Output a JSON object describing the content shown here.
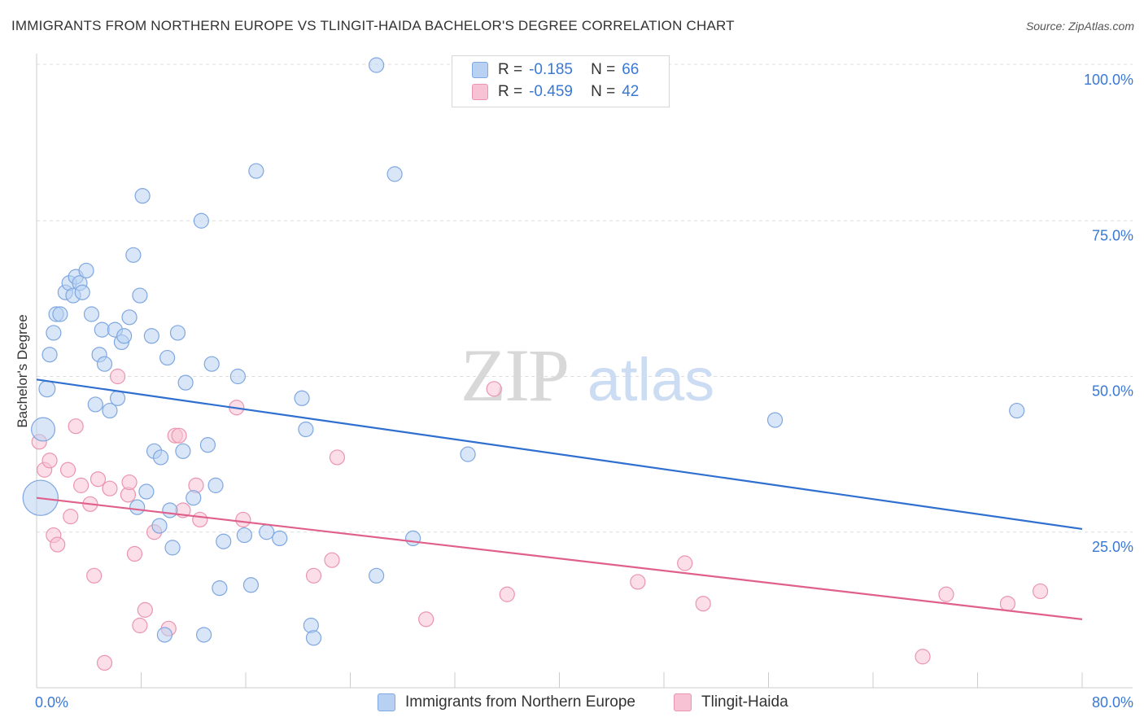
{
  "header": {
    "title": "IMMIGRANTS FROM NORTHERN EUROPE VS TLINGIT-HAIDA BACHELOR'S DEGREE CORRELATION CHART",
    "source": "Source: ZipAtlas.com"
  },
  "watermark": {
    "zip": "ZIP",
    "atlas": "atlas"
  },
  "legend": {
    "rows": [
      {
        "r_label": "R =",
        "r_value": "-0.185",
        "n_label": "N =",
        "n_value": "66"
      },
      {
        "r_label": "R =",
        "r_value": "-0.459",
        "n_label": "N =",
        "n_value": "42"
      }
    ]
  },
  "bottom_legend": {
    "items": [
      "Immigrants from Northern Europe",
      "Tlingit-Haida"
    ]
  },
  "colors": {
    "blue_fill": "#b8d1f3",
    "blue_stroke": "#7fa7e0",
    "blue_line": "#2f6fd0",
    "pink_fill": "#f7c3d4",
    "pink_stroke": "#eb94b1",
    "pink_line": "#e0608c",
    "axis_label": "#3a78d6",
    "grid": "#dddddd"
  },
  "chart_data": {
    "type": "scatter",
    "title": "IMMIGRANTS FROM NORTHERN EUROPE VS TLINGIT-HAIDA BACHELOR'S DEGREE CORRELATION CHART",
    "xlabel": "",
    "ylabel": "Bachelor's Degree",
    "xlim": [
      0,
      80
    ],
    "ylim": [
      0,
      100
    ],
    "x_tick_labels": [
      "0.0%",
      "80.0%"
    ],
    "y_tick_labels": [
      "25.0%",
      "50.0%",
      "75.0%",
      "100.0%"
    ],
    "y_ticks": [
      25,
      50,
      75,
      100
    ],
    "grid": true,
    "series": [
      {
        "name": "Immigrants from Northern Europe",
        "color": "blue",
        "r": -0.185,
        "n": 66,
        "trend": {
          "x": [
            0,
            80
          ],
          "y": [
            49.5,
            25.5
          ]
        },
        "points": [
          [
            0.3,
            30.5,
            2.4
          ],
          [
            0.5,
            41.5,
            1.6
          ],
          [
            0.8,
            48,
            1.1
          ],
          [
            1.0,
            53.5,
            1
          ],
          [
            1.3,
            57,
            1
          ],
          [
            1.5,
            60,
            1
          ],
          [
            1.8,
            60,
            1
          ],
          [
            2.2,
            63.5,
            1
          ],
          [
            2.5,
            65,
            1
          ],
          [
            2.8,
            63,
            1
          ],
          [
            3.0,
            66,
            1
          ],
          [
            3.3,
            65,
            1
          ],
          [
            3.5,
            63.5,
            1
          ],
          [
            3.8,
            67,
            1
          ],
          [
            4.2,
            60,
            1
          ],
          [
            4.5,
            45.5,
            1
          ],
          [
            4.8,
            53.5,
            1
          ],
          [
            5.0,
            57.5,
            1
          ],
          [
            5.2,
            52,
            1
          ],
          [
            5.6,
            44.5,
            1
          ],
          [
            6.0,
            57.5,
            1
          ],
          [
            6.2,
            46.5,
            1
          ],
          [
            6.5,
            55.5,
            1
          ],
          [
            6.7,
            56.5,
            1
          ],
          [
            7.1,
            59.5,
            1
          ],
          [
            7.4,
            69.5,
            1
          ],
          [
            7.7,
            29,
            1
          ],
          [
            7.9,
            63,
            1
          ],
          [
            8.1,
            79,
            1
          ],
          [
            8.4,
            31.5,
            1
          ],
          [
            8.8,
            56.5,
            1
          ],
          [
            9.0,
            38,
            1
          ],
          [
            9.4,
            26,
            1
          ],
          [
            9.5,
            37,
            1
          ],
          [
            9.8,
            8.5,
            1
          ],
          [
            10.0,
            53,
            1
          ],
          [
            10.2,
            28.5,
            1
          ],
          [
            10.4,
            22.5,
            1
          ],
          [
            10.8,
            57,
            1
          ],
          [
            11.2,
            38,
            1
          ],
          [
            11.4,
            49,
            1
          ],
          [
            12.0,
            30.5,
            1
          ],
          [
            12.6,
            75,
            1
          ],
          [
            12.8,
            8.5,
            1
          ],
          [
            13.1,
            39,
            1
          ],
          [
            13.4,
            52,
            1
          ],
          [
            13.7,
            32.5,
            1
          ],
          [
            14.0,
            16,
            1
          ],
          [
            14.3,
            23.5,
            1
          ],
          [
            15.4,
            50,
            1
          ],
          [
            15.9,
            24.5,
            1
          ],
          [
            16.4,
            16.5,
            1
          ],
          [
            16.8,
            83,
            1
          ],
          [
            17.6,
            25,
            1
          ],
          [
            18.6,
            24,
            1
          ],
          [
            20.3,
            46.5,
            1
          ],
          [
            20.6,
            41.5,
            1
          ],
          [
            21.0,
            10,
            1
          ],
          [
            21.2,
            8,
            1
          ],
          [
            26.0,
            100,
            1
          ],
          [
            26.0,
            18,
            1
          ],
          [
            27.4,
            82.5,
            1
          ],
          [
            28.8,
            24,
            1
          ],
          [
            33.0,
            37.5,
            1
          ],
          [
            56.5,
            43,
            1
          ],
          [
            75.0,
            44.5,
            1
          ]
        ]
      },
      {
        "name": "Tlingit-Haida",
        "color": "pink",
        "r": -0.459,
        "n": 42,
        "trend": {
          "x": [
            0,
            80
          ],
          "y": [
            30.5,
            11
          ]
        },
        "points": [
          [
            0.2,
            39.5,
            1
          ],
          [
            0.6,
            35,
            1
          ],
          [
            1.0,
            36.5,
            1
          ],
          [
            1.3,
            24.5,
            1
          ],
          [
            1.6,
            23,
            1
          ],
          [
            2.4,
            35,
            1
          ],
          [
            2.6,
            27.5,
            1
          ],
          [
            3.0,
            42,
            1
          ],
          [
            3.4,
            32.5,
            1
          ],
          [
            4.1,
            29.5,
            1
          ],
          [
            4.4,
            18,
            1
          ],
          [
            4.7,
            33.5,
            1
          ],
          [
            5.2,
            4,
            1
          ],
          [
            5.6,
            32,
            1
          ],
          [
            6.2,
            50,
            1
          ],
          [
            7.0,
            31,
            1
          ],
          [
            7.1,
            33,
            1
          ],
          [
            7.5,
            21.5,
            1
          ],
          [
            7.9,
            10,
            1
          ],
          [
            8.3,
            12.5,
            1
          ],
          [
            9.0,
            25,
            1
          ],
          [
            10.1,
            9.5,
            1
          ],
          [
            10.6,
            40.5,
            1
          ],
          [
            10.9,
            40.5,
            1
          ],
          [
            11.2,
            28.5,
            1
          ],
          [
            12.2,
            32.5,
            1
          ],
          [
            12.5,
            27,
            1
          ],
          [
            15.3,
            45,
            1
          ],
          [
            15.8,
            27,
            1
          ],
          [
            21.2,
            18,
            1
          ],
          [
            23.0,
            37,
            1
          ],
          [
            22.6,
            20.5,
            1
          ],
          [
            29.8,
            11,
            1
          ],
          [
            35.0,
            48,
            1
          ],
          [
            36.0,
            15,
            1
          ],
          [
            46.0,
            17,
            1
          ],
          [
            49.6,
            20,
            1
          ],
          [
            51.0,
            13.5,
            1
          ],
          [
            67.8,
            5,
            1
          ],
          [
            69.6,
            15,
            1
          ],
          [
            74.3,
            13.5,
            1
          ],
          [
            76.8,
            15.5,
            1
          ]
        ]
      }
    ]
  }
}
